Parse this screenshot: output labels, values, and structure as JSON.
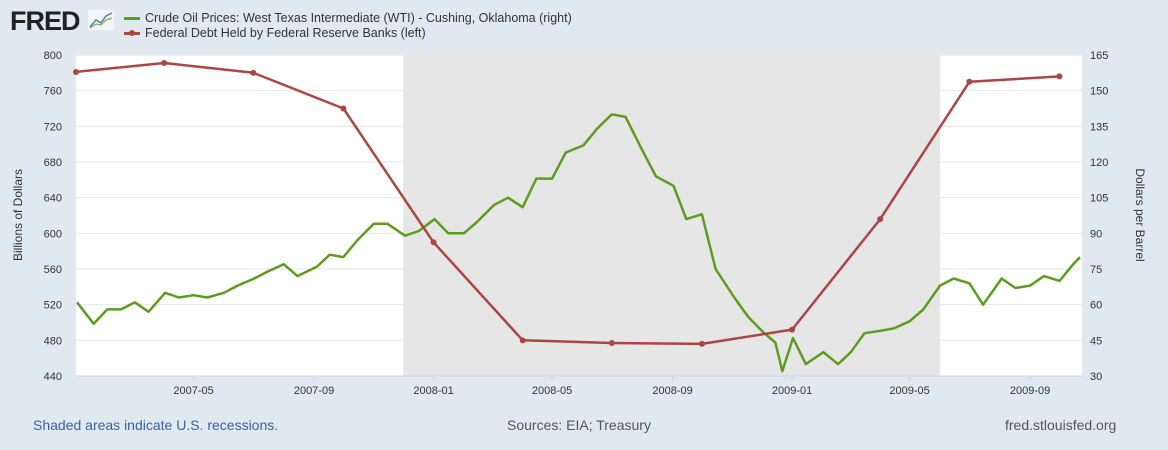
{
  "header": {
    "logo": "FRED",
    "legend": [
      {
        "label": "Crude Oil Prices: West Texas Intermediate (WTI) - Cushing, Oklahoma (right)",
        "color": "#5d9c1f"
      },
      {
        "label": "Federal Debt Held by Federal Reserve Banks (left)",
        "color": "#aa4643"
      }
    ]
  },
  "footer": {
    "recession_note": "Shaded areas indicate U.S. recessions.",
    "sources": "Sources: EIA; Treasury",
    "site": "fred.stlouisfed.org"
  },
  "chart_data": {
    "type": "line",
    "x_range": [
      "2007-01-01",
      "2009-10-24"
    ],
    "x_ticks": [
      "2007-05",
      "2007-09",
      "2008-01",
      "2008-05",
      "2008-09",
      "2009-01",
      "2009-05",
      "2009-09"
    ],
    "y_left": {
      "label": "Billions of Dollars",
      "range": [
        440,
        800
      ],
      "ticks": [
        440,
        480,
        520,
        560,
        600,
        640,
        680,
        720,
        760,
        800
      ]
    },
    "y_right": {
      "label": "Dollars per Barrel",
      "range": [
        30,
        165
      ],
      "ticks": [
        30,
        45,
        60,
        75,
        90,
        105,
        120,
        135,
        150,
        165
      ]
    },
    "recessions": [
      [
        "2007-12-01",
        "2009-06-01"
      ]
    ],
    "series": [
      {
        "name": "Federal Debt Held by Federal Reserve Banks (left)",
        "axis": "left",
        "color": "#aa4643",
        "markers": true,
        "x": [
          "2007-01-01",
          "2007-04-01",
          "2007-07-01",
          "2007-10-01",
          "2008-01-01",
          "2008-04-01",
          "2008-07-01",
          "2008-10-01",
          "2009-01-01",
          "2009-04-01",
          "2009-07-01",
          "2009-10-01"
        ],
        "values": [
          781,
          791,
          780,
          740,
          590,
          480,
          477,
          476,
          492,
          616,
          770,
          776
        ]
      },
      {
        "name": "Crude Oil Prices: West Texas Intermediate (WTI) - Cushing, Oklahoma (right)",
        "axis": "right",
        "color": "#5d9c1f",
        "markers": false,
        "x": [
          "2007-01-02",
          "2007-01-19",
          "2007-02-02",
          "2007-02-16",
          "2007-03-02",
          "2007-03-16",
          "2007-04-02",
          "2007-04-16",
          "2007-05-01",
          "2007-05-15",
          "2007-06-01",
          "2007-06-15",
          "2007-07-02",
          "2007-07-16",
          "2007-08-01",
          "2007-08-15",
          "2007-09-04",
          "2007-09-17",
          "2007-10-01",
          "2007-10-15",
          "2007-11-01",
          "2007-11-15",
          "2007-12-03",
          "2007-12-17",
          "2008-01-02",
          "2008-01-16",
          "2008-02-01",
          "2008-02-15",
          "2008-03-03",
          "2008-03-17",
          "2008-04-01",
          "2008-04-15",
          "2008-05-01",
          "2008-05-15",
          "2008-06-02",
          "2008-06-16",
          "2008-07-01",
          "2008-07-15",
          "2008-08-01",
          "2008-08-15",
          "2008-09-02",
          "2008-09-15",
          "2008-10-01",
          "2008-10-15",
          "2008-11-03",
          "2008-11-17",
          "2008-12-01",
          "2008-12-15",
          "2008-12-22",
          "2009-01-02",
          "2009-01-15",
          "2009-02-02",
          "2009-02-17",
          "2009-03-02",
          "2009-03-16",
          "2009-04-01",
          "2009-04-15",
          "2009-05-01",
          "2009-05-15",
          "2009-06-01",
          "2009-06-15",
          "2009-07-01",
          "2009-07-15",
          "2009-08-03",
          "2009-08-17",
          "2009-09-01",
          "2009-09-15",
          "2009-10-01",
          "2009-10-15",
          "2009-10-22"
        ],
        "values": [
          61,
          52,
          58,
          58,
          61,
          57,
          65,
          63,
          64,
          63,
          65,
          68,
          71,
          74,
          77,
          72,
          76,
          81,
          80,
          87,
          94,
          94,
          89,
          91,
          96,
          90,
          90,
          95,
          102,
          105,
          101,
          113,
          113,
          124,
          127,
          134,
          140,
          139,
          125,
          114,
          110,
          96,
          98,
          75,
          63,
          55,
          49,
          44,
          32,
          46,
          35,
          40,
          35,
          40,
          48,
          49,
          50,
          53,
          58,
          68,
          71,
          69,
          60,
          71,
          67,
          68,
          72,
          70,
          77,
          80
        ]
      }
    ]
  }
}
